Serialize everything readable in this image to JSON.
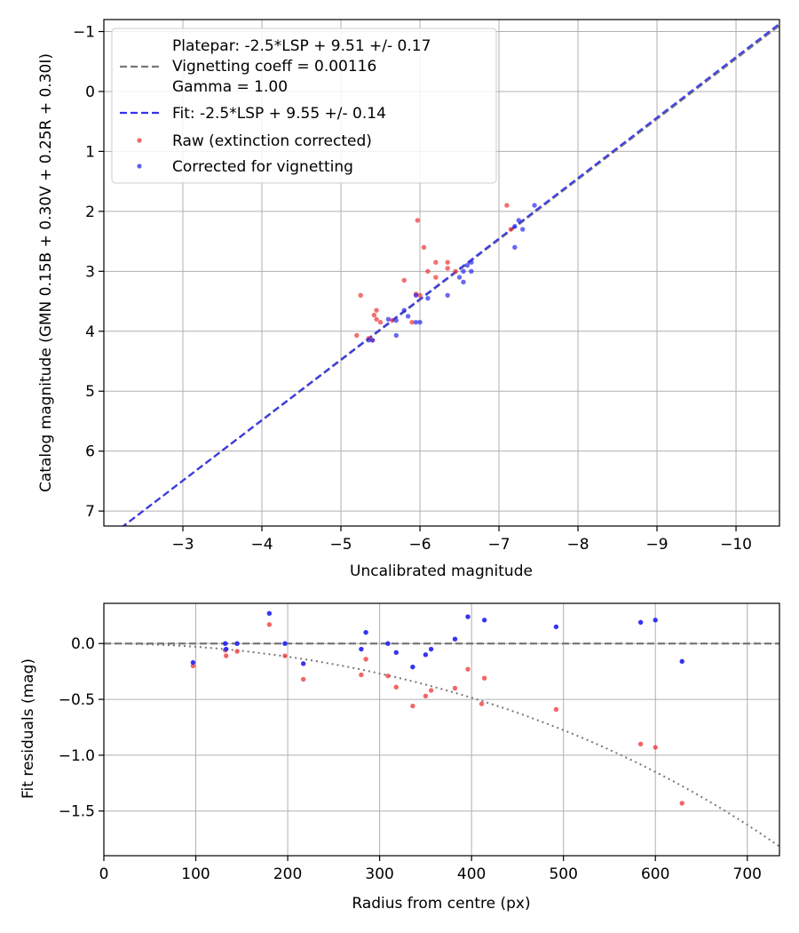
{
  "colors": {
    "raw": "#ee3333",
    "corrected": "#2a2aee",
    "platepar_line": "#777777",
    "fit_line": "#3333ee",
    "dotted_model": "#777777",
    "grid": "#b0b0b0"
  },
  "chart_data": [
    {
      "type": "scatter",
      "name": "calibration",
      "xlabel": "Uncalibrated magnitude",
      "ylabel": "Catalog magnitude (GMN 0.15B + 0.30V + 0.25R + 0.30I)",
      "xlim": [
        -2.0,
        -10.55
      ],
      "ylim": [
        7.25,
        -1.2
      ],
      "x_ticks": [
        -3,
        -4,
        -5,
        -6,
        -7,
        -8,
        -9,
        -10
      ],
      "x_tick_labels": [
        "−3",
        "−4",
        "−5",
        "−6",
        "−7",
        "−8",
        "−9",
        "−10"
      ],
      "y_ticks": [
        -1,
        0,
        1,
        2,
        3,
        4,
        5,
        6,
        7
      ],
      "y_tick_labels": [
        "−1",
        "0",
        "1",
        "2",
        "3",
        "4",
        "5",
        "6",
        "7"
      ],
      "grid": true,
      "legend_position": "top-left",
      "legend": {
        "platepar_line1": "Platepar: -2.5*LSP + 9.51 +/- 0.17",
        "platepar_line2": "Vignetting coeff = 0.00116",
        "platepar_line3": "Gamma = 1.00",
        "fit": "Fit: -2.5*LSP + 9.55 +/- 0.14",
        "raw": "Raw (extinction corrected)",
        "corrected": "Corrected for vignetting"
      },
      "lines": [
        {
          "name": "platepar",
          "style": "dashed",
          "x": [
            -2.0,
            -10.55
          ],
          "y": [
            7.5,
            -1.1
          ]
        },
        {
          "name": "fit",
          "style": "dashed",
          "x": [
            -2.0,
            -10.55
          ],
          "y": [
            7.5,
            -1.13
          ]
        }
      ],
      "series": [
        {
          "name": "raw",
          "points": [
            [
              -7.1,
              1.9
            ],
            [
              -7.15,
              2.3
            ],
            [
              -5.97,
              2.15
            ],
            [
              -6.05,
              2.6
            ],
            [
              -6.2,
              2.85
            ],
            [
              -6.35,
              2.85
            ],
            [
              -6.35,
              2.95
            ],
            [
              -6.45,
              3.0
            ],
            [
              -6.1,
              3.0
            ],
            [
              -6.2,
              3.1
            ],
            [
              -5.8,
              3.15
            ],
            [
              -5.25,
              3.4
            ],
            [
              -5.95,
              3.38
            ],
            [
              -6.0,
              3.4
            ],
            [
              -5.45,
              3.65
            ],
            [
              -5.42,
              3.73
            ],
            [
              -5.45,
              3.8
            ],
            [
              -5.65,
              3.82
            ],
            [
              -5.9,
              3.85
            ],
            [
              -5.5,
              3.85
            ],
            [
              -5.2,
              4.07
            ],
            [
              -5.35,
              4.12
            ],
            [
              -5.4,
              4.15
            ]
          ]
        },
        {
          "name": "corrected",
          "points": [
            [
              -7.45,
              1.9
            ],
            [
              -7.25,
              2.15
            ],
            [
              -7.2,
              2.25
            ],
            [
              -7.3,
              2.3
            ],
            [
              -7.2,
              2.6
            ],
            [
              -6.65,
              2.85
            ],
            [
              -6.6,
              2.9
            ],
            [
              -6.55,
              3.0
            ],
            [
              -6.65,
              3.0
            ],
            [
              -6.5,
              3.1
            ],
            [
              -6.55,
              3.18
            ],
            [
              -6.35,
              3.4
            ],
            [
              -6.1,
              3.45
            ],
            [
              -5.95,
              3.4
            ],
            [
              -5.8,
              3.65
            ],
            [
              -5.85,
              3.75
            ],
            [
              -5.6,
              3.8
            ],
            [
              -5.7,
              3.82
            ],
            [
              -5.95,
              3.85
            ],
            [
              -6.0,
              3.85
            ],
            [
              -5.7,
              4.07
            ],
            [
              -5.35,
              4.15
            ],
            [
              -5.4,
              4.15
            ]
          ]
        }
      ]
    },
    {
      "type": "scatter",
      "name": "residuals",
      "xlabel": "Radius from centre (px)",
      "ylabel": "Fit residuals (mag)",
      "xlim": [
        0,
        735
      ],
      "ylim": [
        -1.9,
        0.36
      ],
      "x_ticks": [
        0,
        100,
        200,
        300,
        400,
        500,
        600,
        700
      ],
      "x_tick_labels": [
        "0",
        "100",
        "200",
        "300",
        "400",
        "500",
        "600",
        "700"
      ],
      "y_ticks": [
        0.0,
        -0.5,
        -1.0,
        -1.5
      ],
      "y_tick_labels": [
        "0.0",
        "−0.5",
        "−1.0",
        "−1.5"
      ],
      "grid": true,
      "lines": [
        {
          "name": "zero",
          "style": "dashed",
          "x": [
            0,
            735
          ],
          "y": [
            0,
            0
          ]
        },
        {
          "name": "vignetting_model",
          "style": "dotted",
          "coefficient": 0.00116,
          "x_range": [
            0,
            735
          ]
        }
      ],
      "series": [
        {
          "name": "raw",
          "points": [
            [
              97,
              -0.2
            ],
            [
              132,
              -0.06
            ],
            [
              133,
              -0.11
            ],
            [
              145,
              -0.07
            ],
            [
              180,
              0.17
            ],
            [
              197,
              -0.11
            ],
            [
              217,
              -0.32
            ],
            [
              280,
              -0.28
            ],
            [
              285,
              -0.14
            ],
            [
              309,
              -0.29
            ],
            [
              318,
              -0.39
            ],
            [
              336,
              -0.56
            ],
            [
              350,
              -0.47
            ],
            [
              356,
              -0.42
            ],
            [
              382,
              -0.4
            ],
            [
              396,
              -0.23
            ],
            [
              411,
              -0.54
            ],
            [
              414,
              -0.31
            ],
            [
              492,
              -0.59
            ],
            [
              584,
              -0.9
            ],
            [
              600,
              -0.93
            ],
            [
              629,
              -1.43
            ]
          ]
        },
        {
          "name": "corrected",
          "points": [
            [
              97,
              -0.17
            ],
            [
              132,
              0.0
            ],
            [
              133,
              -0.05
            ],
            [
              145,
              0.0
            ],
            [
              180,
              0.27
            ],
            [
              197,
              0.0
            ],
            [
              217,
              -0.18
            ],
            [
              280,
              -0.05
            ],
            [
              285,
              0.1
            ],
            [
              309,
              0.0
            ],
            [
              318,
              -0.08
            ],
            [
              336,
              -0.21
            ],
            [
              350,
              -0.1
            ],
            [
              356,
              -0.05
            ],
            [
              382,
              0.04
            ],
            [
              396,
              0.24
            ],
            [
              414,
              0.21
            ],
            [
              492,
              0.15
            ],
            [
              584,
              0.19
            ],
            [
              600,
              0.21
            ],
            [
              629,
              -0.16
            ]
          ]
        }
      ]
    }
  ]
}
